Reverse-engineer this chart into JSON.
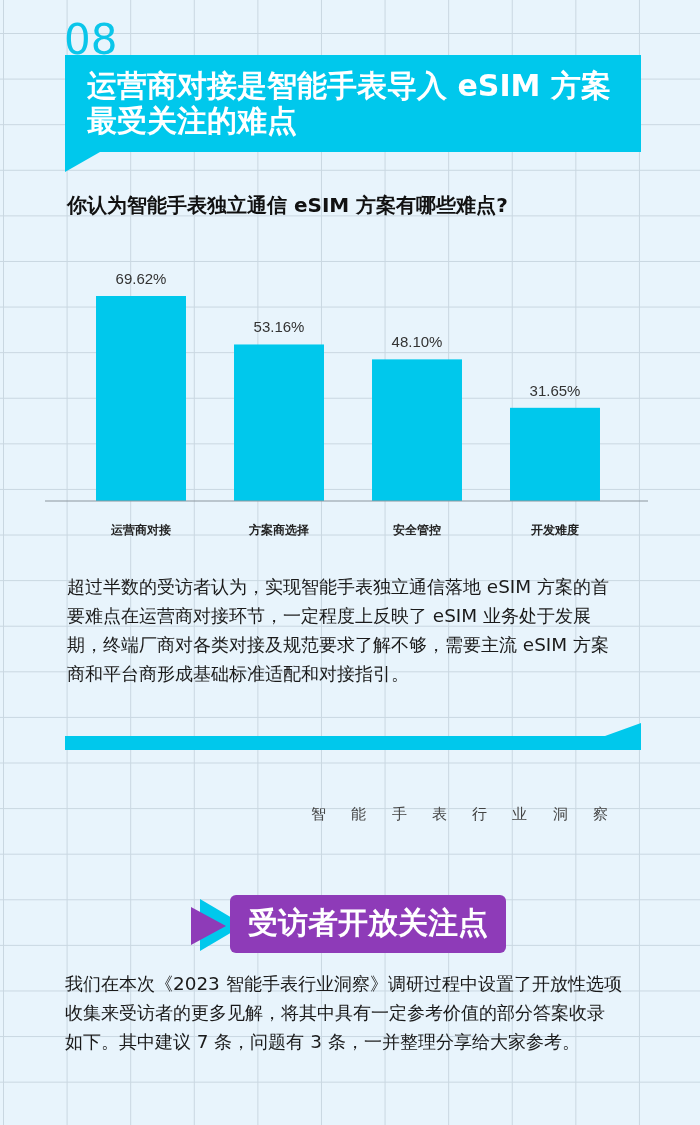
{
  "chart_data": {
    "type": "bar",
    "title": "运营商对接是智能手表导入 eSIM 方案最受关注的难点",
    "subtitle": "你认为智能手表独立通信 eSIM 方案有哪些难点?",
    "categories": [
      "运营商对接",
      "方案商选择",
      "安全管控",
      "开发难度"
    ],
    "values": [
      69.62,
      53.16,
      48.1,
      31.65
    ],
    "color": "#00c8ec",
    "value_labels": [
      "69.62%",
      "53.16%",
      "48.10%",
      "31.65%"
    ],
    "annotations": [
      "08",
      "超过半数的受访者认为，实现智能手表独立通信落地 eSIM 方案的首要难点在运营商对接环节，一定程度上反映了 eSIM 业务处于发展期，终端厂商对各类对接及规范要求了解不够，需要主流 eSIM 方案商和平台商形成基础标准适配和对接指引。",
      "智能手表行业洞察",
      "受访者开放关注点",
      "我们在本次《2023 智能手表行业洞察》调研过程中设置了开放性选项收集来受访者的更多见解，将其中具有一定参考价值的部分答案收录如下。其中建议 7 条，问题有 3 条，一并整理分享给大家参考。"
    ]
  }
}
